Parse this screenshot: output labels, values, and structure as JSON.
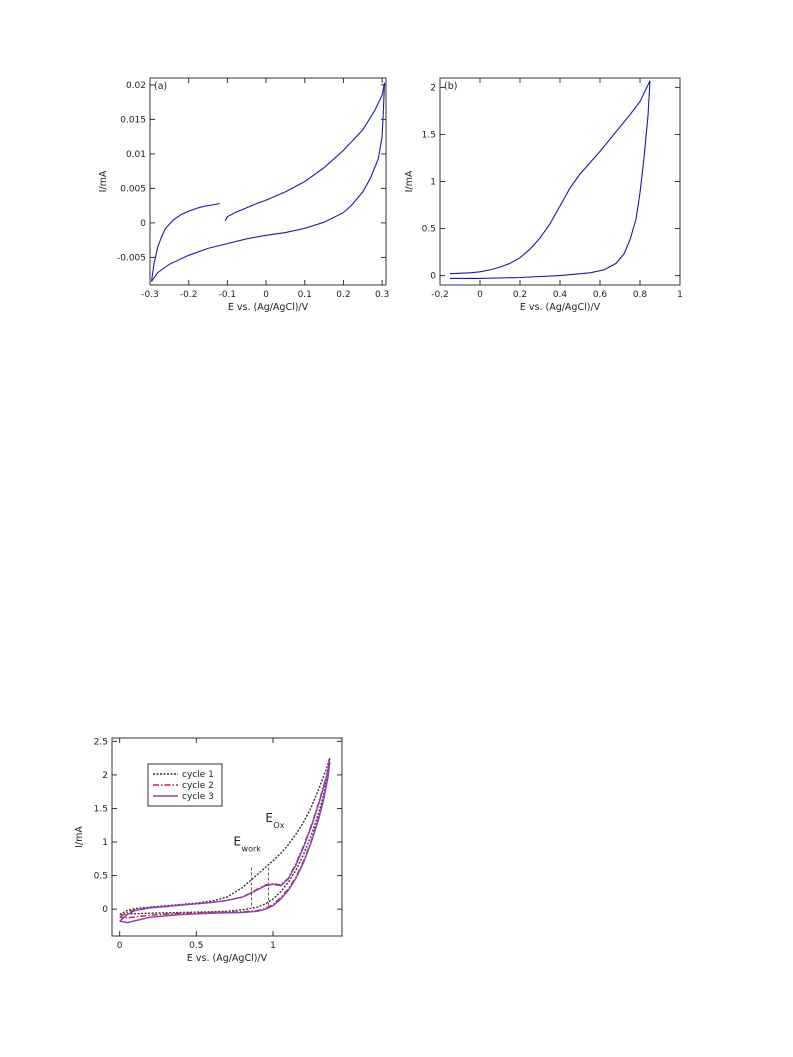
{
  "chart_data": [
    {
      "type": "line",
      "panel_label": "(a)",
      "xlabel": "E vs. (Ag/AgCl)/V",
      "ylabel": "I/mA",
      "xlim": [
        -0.3,
        0.31
      ],
      "ylim": [
        -0.009,
        0.021
      ],
      "xticks": [
        -0.3,
        -0.2,
        -0.1,
        0,
        0.1,
        0.2,
        0.3
      ],
      "xtick_labels": [
        "-0.3",
        "-0.2",
        "-0.1",
        "0",
        "0.1",
        "0.2",
        "0.3"
      ],
      "yticks": [
        -0.005,
        0,
        0.005,
        0.01,
        0.015,
        0.02
      ],
      "ytick_labels": [
        "-0.005",
        "0",
        "0.005",
        "0.01",
        "0.015",
        "0.02"
      ],
      "series": [
        {
          "color": "#1a1aa8",
          "segments": [
            [
              [
                -0.296,
                -0.0085
              ],
              [
                -0.29,
                -0.006
              ],
              [
                -0.28,
                -0.0035
              ],
              [
                -0.27,
                -0.002
              ],
              [
                -0.26,
                -0.0008
              ],
              [
                -0.24,
                0.0004
              ],
              [
                -0.22,
                0.0012
              ],
              [
                -0.2,
                0.0017
              ],
              [
                -0.18,
                0.0021
              ],
              [
                -0.16,
                0.0024
              ],
              [
                -0.14,
                0.0026
              ],
              [
                -0.12,
                0.0028
              ]
            ],
            [
              [
                -0.106,
                0.0003
              ],
              [
                -0.1,
                0.0009
              ],
              [
                -0.08,
                0.0015
              ],
              [
                -0.05,
                0.0022
              ],
              [
                -0.02,
                0.0029
              ],
              [
                0,
                0.0033
              ],
              [
                0.05,
                0.0045
              ],
              [
                0.1,
                0.006
              ],
              [
                0.15,
                0.008
              ],
              [
                0.2,
                0.0105
              ],
              [
                0.25,
                0.0135
              ],
              [
                0.28,
                0.0162
              ],
              [
                0.3,
                0.0185
              ],
              [
                0.306,
                0.0203
              ]
            ],
            [
              [
                0.306,
                0.0203
              ],
              [
                0.303,
                0.016
              ],
              [
                0.3,
                0.0125
              ],
              [
                0.29,
                0.0093
              ],
              [
                0.27,
                0.0065
              ],
              [
                0.25,
                0.0045
              ],
              [
                0.22,
                0.0025
              ],
              [
                0.2,
                0.0015
              ],
              [
                0.15,
                0.0001
              ],
              [
                0.1,
                -0.0008
              ],
              [
                0.05,
                -0.0014
              ],
              [
                0,
                -0.0018
              ],
              [
                -0.05,
                -0.0023
              ],
              [
                -0.1,
                -0.003
              ],
              [
                -0.15,
                -0.0037
              ],
              [
                -0.2,
                -0.0047
              ],
              [
                -0.25,
                -0.006
              ],
              [
                -0.28,
                -0.0072
              ],
              [
                -0.296,
                -0.0085
              ]
            ]
          ]
        }
      ]
    },
    {
      "type": "line",
      "panel_label": "(b)",
      "xlabel": "E vs. (Ag/AgCl)/V",
      "ylabel": "I/mA",
      "xlim": [
        -0.2,
        1.0
      ],
      "ylim": [
        -0.1,
        2.1
      ],
      "xticks": [
        -0.2,
        0,
        0.2,
        0.4,
        0.6,
        0.8,
        1.0
      ],
      "xtick_labels": [
        "-0.2",
        "0",
        "0.2",
        "0.4",
        "0.6",
        "0.8",
        "1"
      ],
      "yticks": [
        0,
        0.5,
        1,
        1.5,
        2
      ],
      "ytick_labels": [
        "0",
        "0.5",
        "1",
        "1.5",
        "2"
      ],
      "series": [
        {
          "color": "#1a1aa8",
          "segments": [
            [
              [
                -0.15,
                0.02
              ],
              [
                -0.05,
                0.03
              ],
              [
                0,
                0.04
              ],
              [
                0.05,
                0.06
              ],
              [
                0.1,
                0.09
              ],
              [
                0.15,
                0.13
              ],
              [
                0.2,
                0.19
              ],
              [
                0.25,
                0.28
              ],
              [
                0.3,
                0.4
              ],
              [
                0.35,
                0.55
              ],
              [
                0.4,
                0.74
              ],
              [
                0.45,
                0.93
              ],
              [
                0.5,
                1.08
              ],
              [
                0.55,
                1.2
              ],
              [
                0.6,
                1.32
              ],
              [
                0.65,
                1.45
              ],
              [
                0.7,
                1.58
              ],
              [
                0.75,
                1.71
              ],
              [
                0.8,
                1.85
              ],
              [
                0.85,
                2.07
              ]
            ],
            [
              [
                0.85,
                2.07
              ],
              [
                0.84,
                1.7
              ],
              [
                0.82,
                1.25
              ],
              [
                0.8,
                0.88
              ],
              [
                0.78,
                0.6
              ],
              [
                0.75,
                0.38
              ],
              [
                0.72,
                0.23
              ],
              [
                0.68,
                0.13
              ],
              [
                0.62,
                0.06
              ],
              [
                0.55,
                0.03
              ],
              [
                0.4,
                0.0
              ],
              [
                0.2,
                -0.02
              ],
              [
                0.0,
                -0.03
              ],
              [
                -0.15,
                -0.03
              ]
            ]
          ]
        }
      ]
    },
    {
      "type": "line",
      "xlabel": "E vs. (Ag/AgCl)/V",
      "ylabel": "I/mA",
      "xlim": [
        -0.05,
        1.45
      ],
      "ylim": [
        -0.4,
        2.55
      ],
      "xticks": [
        0,
        0.5,
        1
      ],
      "xtick_labels": [
        "0",
        "0.5",
        "1"
      ],
      "yticks": [
        0,
        0.5,
        1,
        1.5,
        2,
        2.5
      ],
      "ytick_labels": [
        "0",
        "0.5",
        "1",
        "1.5",
        "2",
        "2.5"
      ],
      "legend": {
        "placement": "top-left"
      },
      "annotations": [
        {
          "main": "E",
          "sub": "work",
          "x": 0.86
        },
        {
          "main": "E",
          "sub": "Ox",
          "x": 0.97
        }
      ],
      "series": [
        {
          "name": "cycle 1",
          "color": "#333333",
          "dash": "2,1.5",
          "points": [
            [
              0,
              -0.08
            ],
            [
              0.05,
              -0.02
            ],
            [
              0.1,
              0.01
            ],
            [
              0.2,
              0.03
            ],
            [
              0.3,
              0.05
            ],
            [
              0.4,
              0.07
            ],
            [
              0.5,
              0.09
            ],
            [
              0.6,
              0.12
            ],
            [
              0.7,
              0.18
            ],
            [
              0.8,
              0.32
            ],
            [
              0.85,
              0.42
            ],
            [
              0.9,
              0.52
            ],
            [
              0.95,
              0.62
            ],
            [
              1.0,
              0.72
            ],
            [
              1.05,
              0.83
            ],
            [
              1.1,
              0.96
            ],
            [
              1.15,
              1.12
            ],
            [
              1.2,
              1.3
            ],
            [
              1.25,
              1.52
            ],
            [
              1.3,
              1.8
            ],
            [
              1.35,
              2.1
            ],
            [
              1.37,
              2.25
            ],
            [
              1.36,
              2.05
            ],
            [
              1.33,
              1.7
            ],
            [
              1.3,
              1.45
            ],
            [
              1.25,
              1.1
            ],
            [
              1.2,
              0.82
            ],
            [
              1.15,
              0.58
            ],
            [
              1.1,
              0.4
            ],
            [
              1.05,
              0.26
            ],
            [
              1.0,
              0.15
            ],
            [
              0.95,
              0.08
            ],
            [
              0.9,
              0.03
            ],
            [
              0.8,
              -0.01
            ],
            [
              0.7,
              -0.03
            ],
            [
              0.6,
              -0.04
            ],
            [
              0.4,
              -0.05
            ],
            [
              0.2,
              -0.06
            ],
            [
              0.05,
              -0.07
            ],
            [
              0,
              -0.08
            ]
          ]
        },
        {
          "name": "cycle 2",
          "color": "#cc1f3a",
          "dash": "6,2,1.5,2",
          "points": [
            [
              0,
              -0.12
            ],
            [
              0.05,
              -0.05
            ],
            [
              0.1,
              -0.01
            ],
            [
              0.2,
              0.02
            ],
            [
              0.3,
              0.04
            ],
            [
              0.4,
              0.06
            ],
            [
              0.5,
              0.08
            ],
            [
              0.6,
              0.1
            ],
            [
              0.7,
              0.13
            ],
            [
              0.8,
              0.18
            ],
            [
              0.85,
              0.24
            ],
            [
              0.9,
              0.3
            ],
            [
              0.95,
              0.36
            ],
            [
              1.0,
              0.38
            ],
            [
              1.05,
              0.36
            ],
            [
              1.1,
              0.46
            ],
            [
              1.15,
              0.68
            ],
            [
              1.2,
              0.95
            ],
            [
              1.25,
              1.25
            ],
            [
              1.3,
              1.6
            ],
            [
              1.35,
              2.0
            ],
            [
              1.37,
              2.2
            ],
            [
              1.36,
              2.0
            ],
            [
              1.33,
              1.65
            ],
            [
              1.3,
              1.38
            ],
            [
              1.25,
              1.02
            ],
            [
              1.2,
              0.72
            ],
            [
              1.15,
              0.48
            ],
            [
              1.1,
              0.3
            ],
            [
              1.05,
              0.17
            ],
            [
              1.0,
              0.07
            ],
            [
              0.95,
              0.01
            ],
            [
              0.9,
              -0.02
            ],
            [
              0.8,
              -0.04
            ],
            [
              0.6,
              -0.05
            ],
            [
              0.4,
              -0.06
            ],
            [
              0.2,
              -0.09
            ],
            [
              0.05,
              -0.13
            ],
            [
              0,
              -0.12
            ]
          ]
        },
        {
          "name": "cycle 3",
          "color": "#8a3fb8",
          "dash": "",
          "points": [
            [
              0,
              -0.18
            ],
            [
              0.05,
              -0.08
            ],
            [
              0.1,
              -0.02
            ],
            [
              0.2,
              0.02
            ],
            [
              0.3,
              0.04
            ],
            [
              0.4,
              0.06
            ],
            [
              0.5,
              0.08
            ],
            [
              0.6,
              0.1
            ],
            [
              0.7,
              0.13
            ],
            [
              0.8,
              0.18
            ],
            [
              0.85,
              0.23
            ],
            [
              0.9,
              0.29
            ],
            [
              0.95,
              0.35
            ],
            [
              1.0,
              0.37
            ],
            [
              1.05,
              0.35
            ],
            [
              1.1,
              0.45
            ],
            [
              1.15,
              0.66
            ],
            [
              1.2,
              0.93
            ],
            [
              1.25,
              1.23
            ],
            [
              1.3,
              1.58
            ],
            [
              1.35,
              1.98
            ],
            [
              1.37,
              2.18
            ],
            [
              1.36,
              1.98
            ],
            [
              1.33,
              1.63
            ],
            [
              1.3,
              1.36
            ],
            [
              1.25,
              1.0
            ],
            [
              1.2,
              0.7
            ],
            [
              1.15,
              0.46
            ],
            [
              1.1,
              0.28
            ],
            [
              1.05,
              0.15
            ],
            [
              1.0,
              0.05
            ],
            [
              0.95,
              0.0
            ],
            [
              0.9,
              -0.03
            ],
            [
              0.8,
              -0.05
            ],
            [
              0.6,
              -0.06
            ],
            [
              0.4,
              -0.08
            ],
            [
              0.2,
              -0.12
            ],
            [
              0.05,
              -0.2
            ],
            [
              0,
              -0.18
            ]
          ]
        }
      ]
    }
  ]
}
